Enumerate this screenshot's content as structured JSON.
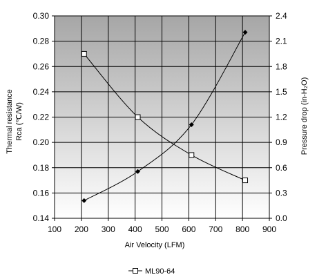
{
  "chart_data": {
    "type": "line",
    "x_axis": {
      "label": "Air Velocity (LFM)",
      "range": [
        100,
        900
      ],
      "ticks": [
        100,
        200,
        300,
        400,
        500,
        600,
        700,
        800,
        900
      ]
    },
    "y_left_axis": {
      "label_line1": "Thermal resistance",
      "label_line2": "Rca (℃/W)",
      "range": [
        0.14,
        0.3
      ],
      "ticks": [
        "0.14",
        "0.16",
        "0.18",
        "0.20",
        "0.22",
        "0.24",
        "0.26",
        "0.28",
        "0.30"
      ]
    },
    "y_right_axis": {
      "label": "Pressure drop (in-H₂O)",
      "range": [
        0.0,
        2.4
      ],
      "ticks": [
        "0.0",
        "0.3",
        "0.6",
        "0.9",
        "1.2",
        "1.5",
        "1.8",
        "2.1",
        "2.4"
      ]
    },
    "series": [
      {
        "axis": "left",
        "marker": "diamond-filled",
        "x": [
          210,
          410,
          610,
          810
        ],
        "y": [
          0.154,
          0.177,
          0.214,
          0.287
        ]
      },
      {
        "name": "ML90-64",
        "axis": "left",
        "marker": "square-open",
        "x": [
          210,
          410,
          610,
          810
        ],
        "y": [
          0.27,
          0.22,
          0.19,
          0.17
        ]
      }
    ],
    "legend": {
      "placement": "bottom-center"
    },
    "background": {
      "gradient_top": "#a6a6a6",
      "gradient_bottom": "#ffffff"
    },
    "grid": true
  }
}
